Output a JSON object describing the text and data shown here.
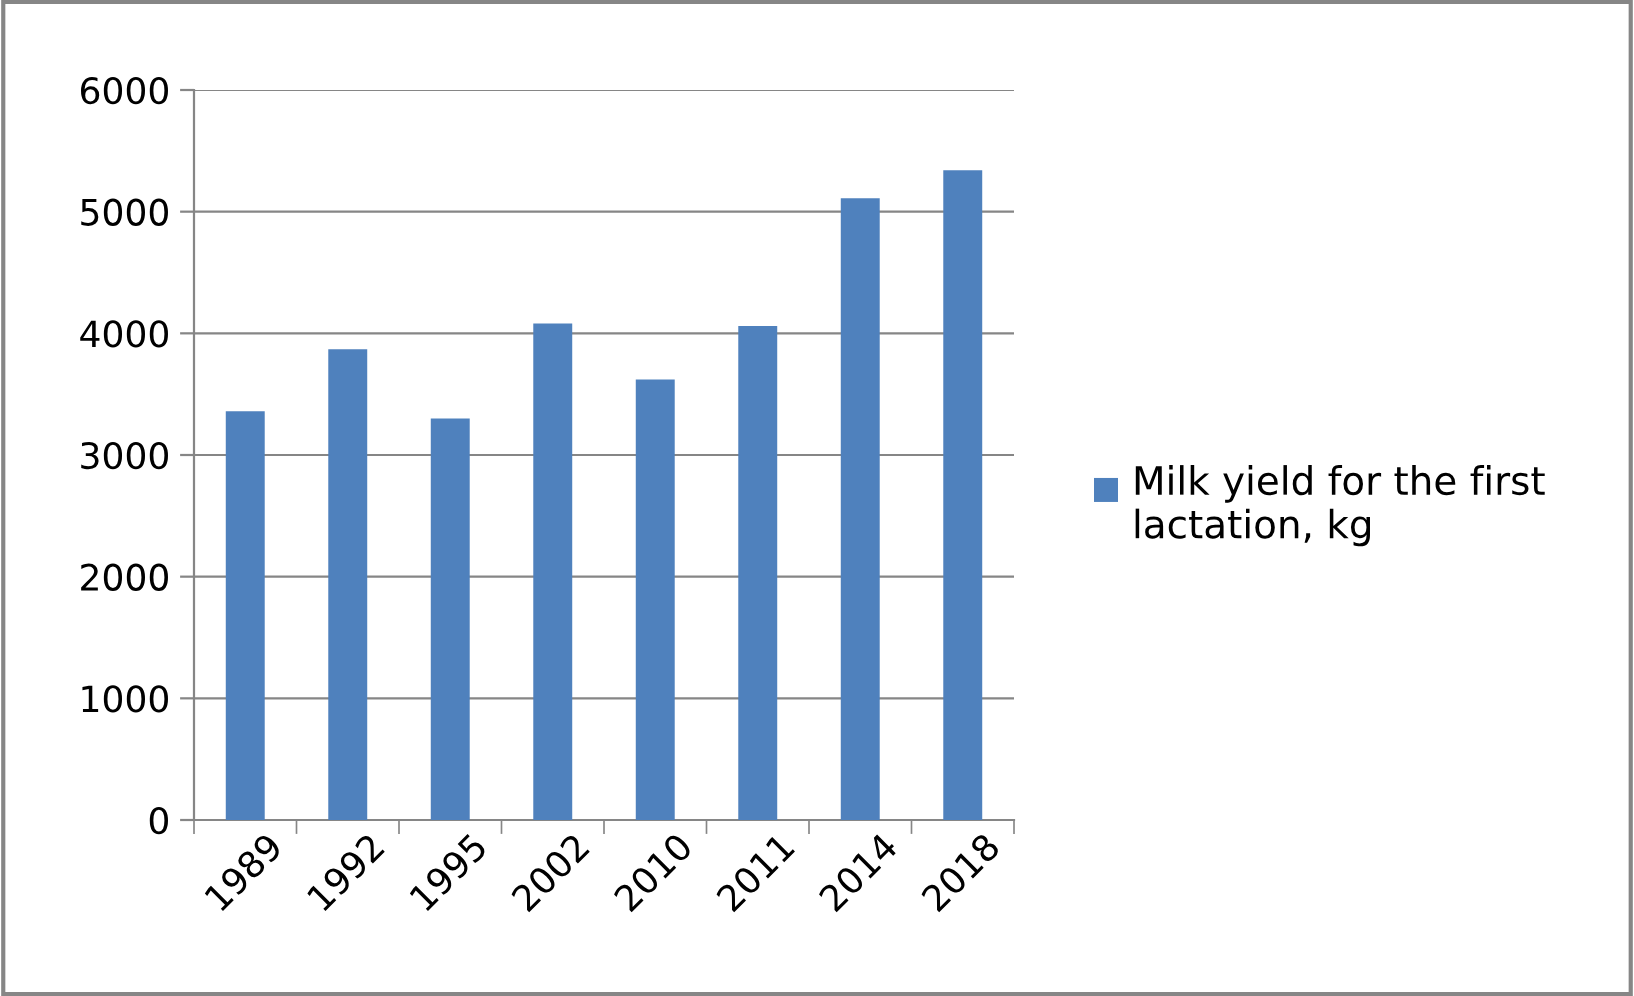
{
  "chart_data": {
    "type": "bar",
    "categories": [
      "1989",
      "1992",
      "1995",
      "2002",
      "2010",
      "2011",
      "2014",
      "2018"
    ],
    "series": [
      {
        "name": "Milk yield for the first lactation, kg",
        "color": "#4f81bd",
        "values": [
          3360,
          3870,
          3300,
          4080,
          3620,
          4060,
          5110,
          5340
        ]
      }
    ],
    "ylim": [
      0,
      6000
    ],
    "yticks": [
      0,
      1000,
      2000,
      3000,
      4000,
      5000,
      6000
    ],
    "grid": "y",
    "legend": "right"
  }
}
